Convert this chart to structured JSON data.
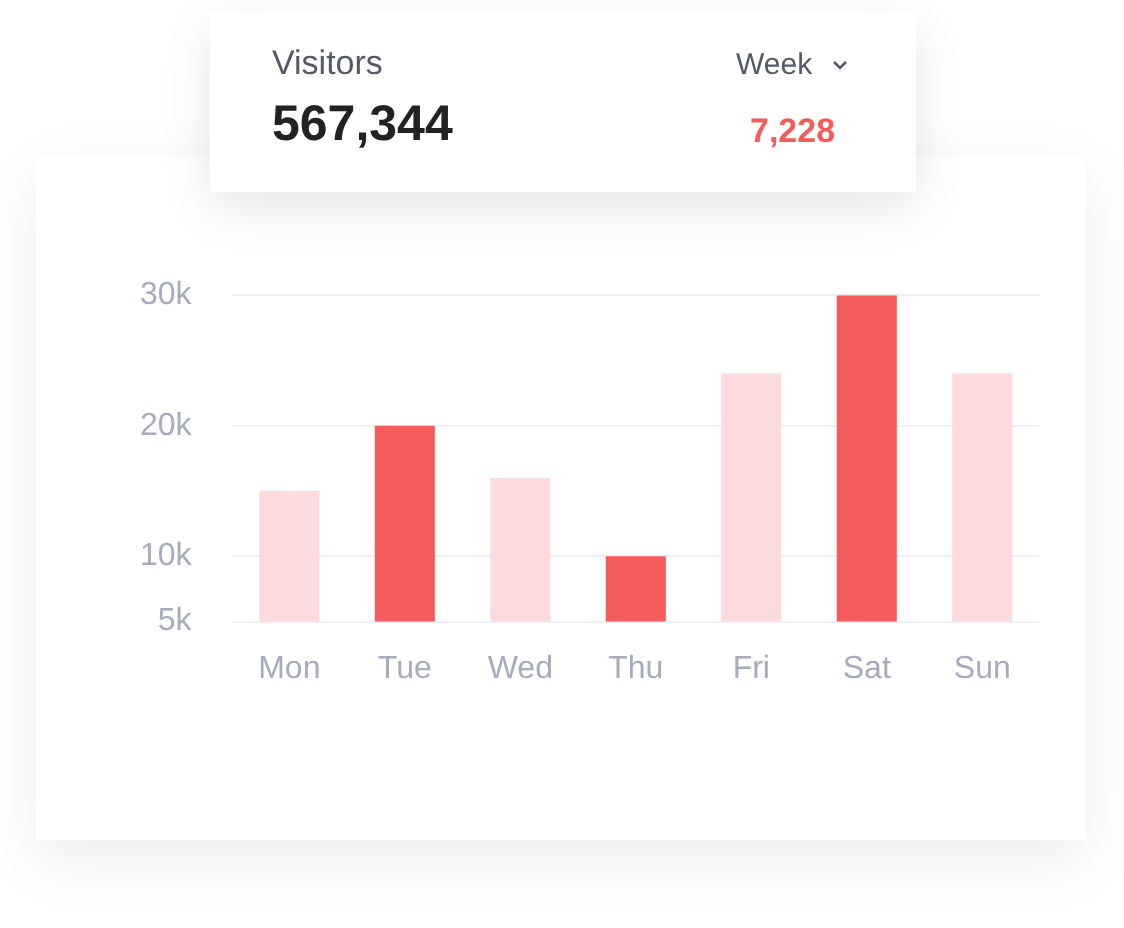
{
  "chart_data": {
    "type": "bar",
    "title": "Visitors",
    "annotations": [
      "567,344",
      "Week",
      "7,228"
    ],
    "categories": [
      "Mon",
      "Tue",
      "Wed",
      "Thu",
      "Fri",
      "Sat",
      "Sun"
    ],
    "values": [
      15000,
      20000,
      16000,
      10000,
      24000,
      30000,
      24000
    ],
    "colors": [
      "#fddadc",
      "#f45b5b",
      "#fddadc",
      "#f45b5b",
      "#fddadc",
      "#f45b5b",
      "#fddadc"
    ],
    "ylim": [
      5000,
      30000
    ],
    "yticks": [
      {
        "value": 5000,
        "label": "5k"
      },
      {
        "value": 10000,
        "label": "10k"
      },
      {
        "value": 20000,
        "label": "20k"
      },
      {
        "value": 30000,
        "label": "30k"
      }
    ],
    "grid": "y"
  }
}
